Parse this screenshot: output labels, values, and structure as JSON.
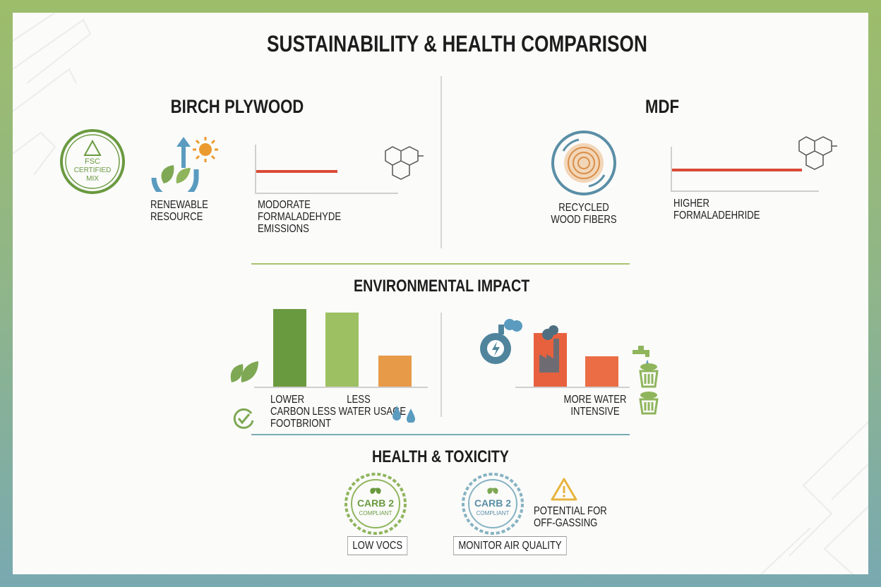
{
  "title": "SUSTAINABILITY & HEALTH COMPARISON",
  "birch": {
    "heading": "BIRCH PLYWOOD",
    "fsc_badge": {
      "line1": "FSC",
      "line2": "CERTIFIED",
      "line3": "MIX"
    },
    "renewable_label": [
      "RENEWABLE",
      "RESOURCE"
    ],
    "emissions_label": [
      "MODORATE",
      "FORMALADEHYDE",
      "EMISSIONS"
    ],
    "emission_level": 0.5
  },
  "mdf": {
    "heading": "MDF",
    "recycled_label": [
      "RECYCLED",
      "WOOD FIBERS"
    ],
    "emissions_label": [
      "HIGHER",
      "FORMALADEHRIDE"
    ],
    "emission_level": 0.65
  },
  "environmental": {
    "heading": "ENVIRONMENTAL IMPACT",
    "birch_bars": [
      {
        "level": 1.0,
        "color": "#6a9a40"
      },
      {
        "level": 0.95,
        "color": "#9dc063"
      },
      {
        "level": 0.4,
        "color": "#e79a48"
      }
    ],
    "mdf_bars": [
      {
        "level": 0.69,
        "color": "#e8613f"
      },
      {
        "level": 0.39,
        "color": "#eb6d45"
      }
    ],
    "birch_labels": {
      "carbon": [
        "LOWER",
        "CARBON",
        "FOOTBRIONT"
      ],
      "water": [
        "LESS",
        "LESS WATER USAGE"
      ]
    },
    "mdf_label": [
      "MORE WATER",
      "INTENSIVE"
    ]
  },
  "health": {
    "heading": "HEALTH & TOXICITY",
    "birch_badge": {
      "line1": "CARB 2",
      "line2": "COMPLIANT"
    },
    "mdf_badge": {
      "line1": "CARB 2",
      "line2": "COMPLIANT"
    },
    "birch_tag": "LOW VOCs",
    "mdf_tag": "MONITOR AIR QUALITY",
    "warning_label": [
      "POTENTIAL FOR",
      "OFF-GASSING"
    ]
  },
  "colors": {
    "green": "#6a9a40",
    "light_green": "#9dc063",
    "orange": "#e79a48",
    "red": "#e8613f",
    "teal": "#5a8fa6",
    "emission_line": "#d94a36"
  }
}
